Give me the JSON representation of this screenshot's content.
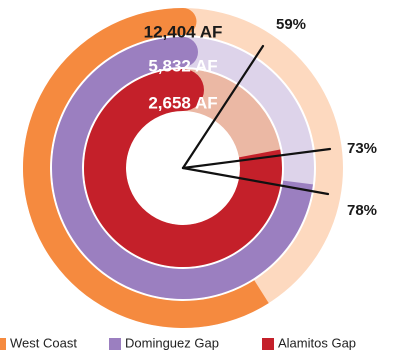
{
  "chart_data": {
    "type": "radial-bar",
    "series": [
      {
        "name": "West Coast",
        "amount_label": "12,404 AF",
        "percent_label": "59%",
        "fraction": 0.59,
        "color": "#f58a3f",
        "track_color": "#fdd9bf",
        "label_color": "#1a1a1a"
      },
      {
        "name": "Dominguez Gap",
        "amount_label": "5,832 AF",
        "percent_label": "73%",
        "fraction": 0.73,
        "color": "#9b7fc0",
        "track_color": "#ddd3ea",
        "label_color": "#ffffff"
      },
      {
        "name": "Alamitos Gap",
        "amount_label": "2,658 AF",
        "percent_label": "78%",
        "fraction": 0.78,
        "color": "#c4202a",
        "track_color": "#ebb8a4",
        "label_color": "#ffffff"
      }
    ],
    "legend_position": "bottom"
  }
}
